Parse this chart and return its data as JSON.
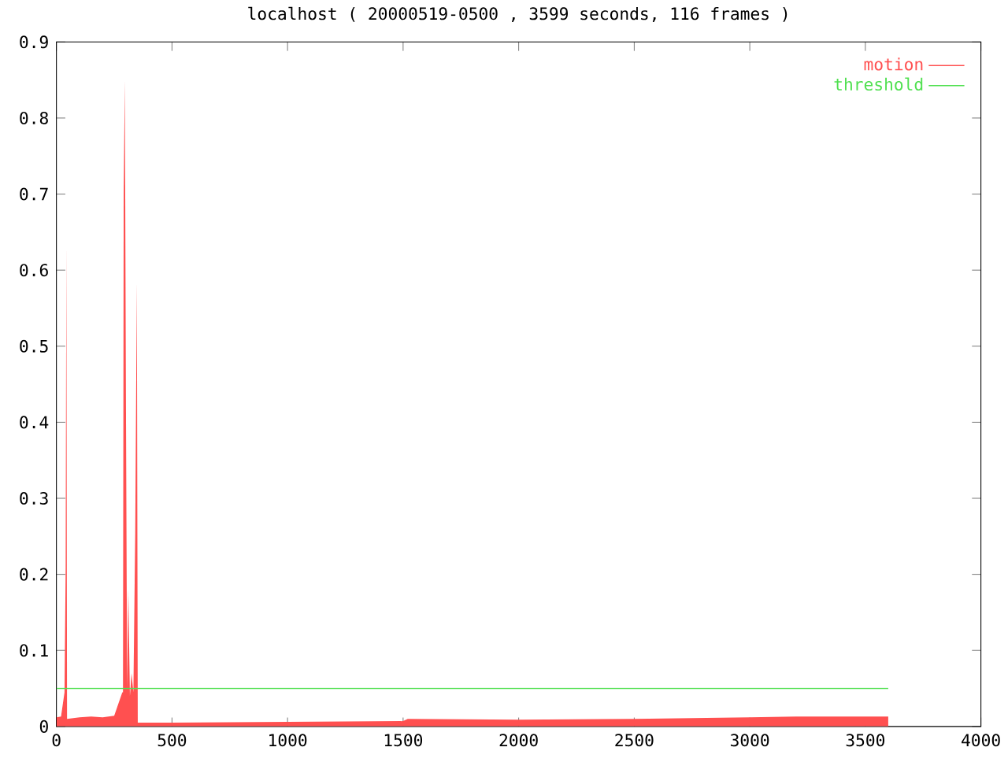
{
  "chart_data": {
    "type": "area",
    "title": "localhost ( 20000519-0500 , 3599 seconds, 116 frames )",
    "xlim": [
      0,
      4000
    ],
    "xticks": [
      0,
      500,
      1000,
      1500,
      2000,
      2500,
      3000,
      3500,
      4000
    ],
    "ylim": [
      0,
      0.9
    ],
    "yticks": [
      0,
      0.1,
      0.2,
      0.3,
      0.4,
      0.5,
      0.6,
      0.7,
      0.8,
      0.9
    ],
    "legend": "top right",
    "grid": false,
    "series": [
      {
        "name": "motion",
        "color": "#ff5050",
        "x": [
          0,
          20,
          35,
          40,
          43,
          46,
          100,
          150,
          200,
          250,
          285,
          288,
          291,
          296,
          301,
          306,
          311,
          318,
          325,
          333,
          341,
          348,
          352,
          500,
          1000,
          1500,
          1520,
          2000,
          2500,
          3000,
          3200,
          3599
        ],
        "values": [
          0.012,
          0.013,
          0.045,
          0.21,
          0.635,
          0.01,
          0.012,
          0.013,
          0.012,
          0.014,
          0.045,
          0.045,
          0.7,
          0.85,
          0.41,
          0.05,
          0.18,
          0.04,
          0.07,
          0.045,
          0.255,
          0.585,
          0.005,
          0.005,
          0.006,
          0.007,
          0.01,
          0.009,
          0.01,
          0.012,
          0.013,
          0.013
        ]
      },
      {
        "name": "threshold",
        "type": "line",
        "color": "#50e050",
        "x": [
          0,
          3599
        ],
        "values": [
          0.05,
          0.05
        ]
      }
    ]
  }
}
